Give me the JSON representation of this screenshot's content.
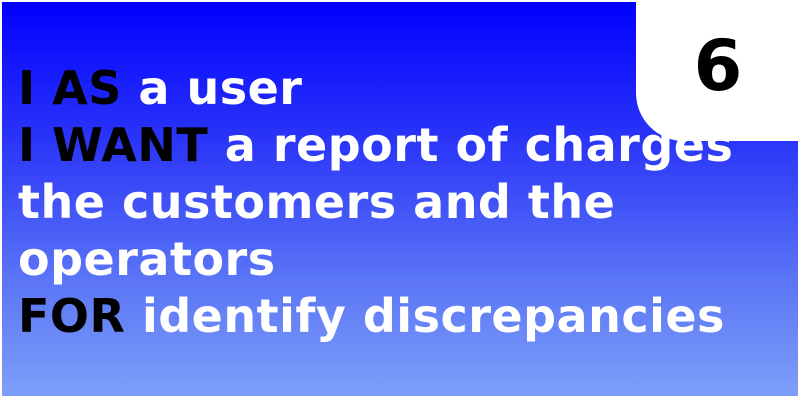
{
  "card": {
    "number": "6",
    "lines": [
      {
        "keyword": "I AS",
        "text": " a user"
      },
      {
        "keyword": "I WANT",
        "text": " a report of charges"
      },
      {
        "keyword": "",
        "text": "the customers and the"
      },
      {
        "keyword": "",
        "text": "operators"
      },
      {
        "keyword": "FOR",
        "text": " identify discrepancies"
      }
    ]
  },
  "colors": {
    "gradient_top": "#0000fe",
    "gradient_bottom": "#7d9ff8",
    "keyword": "#000000",
    "text": "#ffffff",
    "badge_background": "#ffffff"
  }
}
